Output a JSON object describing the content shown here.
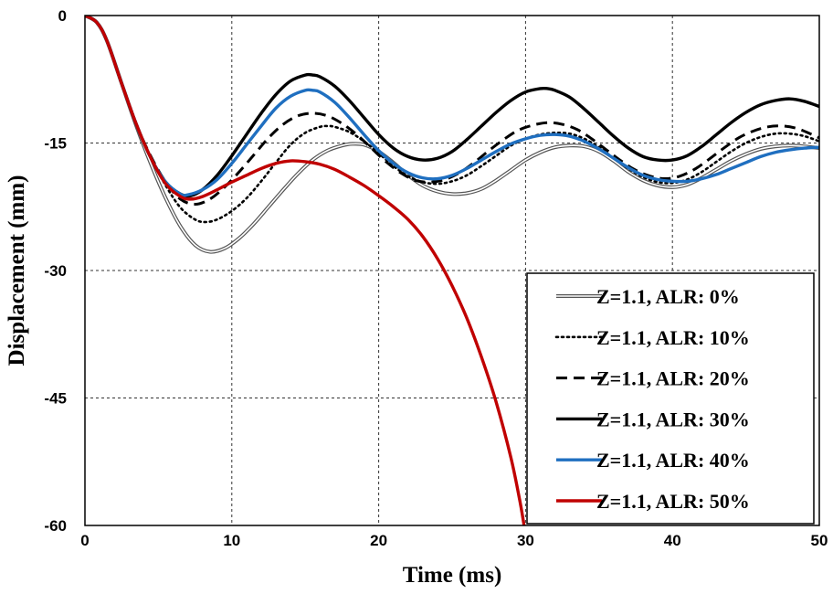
{
  "chart_data": {
    "type": "line",
    "title": "",
    "xlabel": "Time (ms)",
    "ylabel": "Displacement (mm)",
    "xlim": [
      0,
      50
    ],
    "ylim": [
      -60,
      0
    ],
    "grid": true,
    "legend_position": "bottom-right",
    "x_ticks": [
      0,
      10,
      20,
      30,
      40,
      50
    ],
    "x_tick_labels": [
      "0",
      "10",
      "20",
      "30",
      "40",
      "50"
    ],
    "y_ticks": [
      0,
      -15,
      -30,
      -45,
      -60
    ],
    "y_tick_labels": [
      "0",
      "-15",
      "-30",
      "-45",
      "-60"
    ],
    "series": [
      {
        "name": "Z=1.1, ALR: 0%",
        "color": "#555555",
        "style": "double",
        "points": [
          [
            0,
            0
          ],
          [
            0.8,
            -0.8
          ],
          [
            1.5,
            -3
          ],
          [
            2.5,
            -8
          ],
          [
            3.5,
            -13
          ],
          [
            4.5,
            -17.5
          ],
          [
            5.5,
            -21.5
          ],
          [
            6.5,
            -24.8
          ],
          [
            7.5,
            -27
          ],
          [
            8.5,
            -27.8
          ],
          [
            9.5,
            -27.4
          ],
          [
            10.5,
            -26.2
          ],
          [
            11.5,
            -24.5
          ],
          [
            12.5,
            -22.5
          ],
          [
            13.5,
            -20.5
          ],
          [
            14.5,
            -18.6
          ],
          [
            15.5,
            -17
          ],
          [
            16.5,
            -15.9
          ],
          [
            17.5,
            -15.3
          ],
          [
            18.2,
            -15.1
          ],
          [
            19,
            -15.2
          ],
          [
            20,
            -16
          ],
          [
            21,
            -17.3
          ],
          [
            22,
            -18.8
          ],
          [
            23,
            -20
          ],
          [
            24,
            -20.7
          ],
          [
            25,
            -21
          ],
          [
            26,
            -20.9
          ],
          [
            27,
            -20.4
          ],
          [
            28,
            -19.4
          ],
          [
            29,
            -18.2
          ],
          [
            30,
            -17
          ],
          [
            31,
            -16.1
          ],
          [
            32,
            -15.5
          ],
          [
            33,
            -15.3
          ],
          [
            34,
            -15.4
          ],
          [
            35,
            -16
          ],
          [
            36,
            -17.1
          ],
          [
            37,
            -18.4
          ],
          [
            38,
            -19.4
          ],
          [
            39,
            -20
          ],
          [
            40,
            -20.2
          ],
          [
            41,
            -19.9
          ],
          [
            42,
            -19.1
          ],
          [
            43,
            -18.1
          ],
          [
            44,
            -17.1
          ],
          [
            45,
            -16.3
          ],
          [
            46,
            -15.7
          ],
          [
            47,
            -15.4
          ],
          [
            48,
            -15.3
          ],
          [
            49,
            -15.4
          ],
          [
            50,
            -15.6
          ]
        ]
      },
      {
        "name": "Z=1.1, ALR: 10%",
        "color": "#000000",
        "style": "dotted",
        "points": [
          [
            0,
            0
          ],
          [
            0.8,
            -0.8
          ],
          [
            1.5,
            -3
          ],
          [
            2.5,
            -8
          ],
          [
            3.5,
            -12.8
          ],
          [
            4.5,
            -16.8
          ],
          [
            5.5,
            -20
          ],
          [
            6.5,
            -22.6
          ],
          [
            7.5,
            -24
          ],
          [
            8.2,
            -24.3
          ],
          [
            9,
            -24
          ],
          [
            10,
            -23
          ],
          [
            11,
            -21.5
          ],
          [
            12,
            -19.5
          ],
          [
            13,
            -17.3
          ],
          [
            14,
            -15.2
          ],
          [
            15,
            -13.8
          ],
          [
            16,
            -13.1
          ],
          [
            16.5,
            -13
          ],
          [
            17,
            -13.1
          ],
          [
            18,
            -13.7
          ],
          [
            19,
            -14.8
          ],
          [
            20,
            -16.2
          ],
          [
            21,
            -17.7
          ],
          [
            22,
            -18.9
          ],
          [
            23,
            -19.6
          ],
          [
            24,
            -19.8
          ],
          [
            25,
            -19.5
          ],
          [
            26,
            -18.8
          ],
          [
            27,
            -17.7
          ],
          [
            28,
            -16.5
          ],
          [
            29,
            -15.3
          ],
          [
            30,
            -14.5
          ],
          [
            31,
            -14
          ],
          [
            32,
            -13.8
          ],
          [
            33,
            -13.9
          ],
          [
            34,
            -14.5
          ],
          [
            35,
            -15.5
          ],
          [
            36,
            -16.8
          ],
          [
            37,
            -18
          ],
          [
            38,
            -19
          ],
          [
            39,
            -19.6
          ],
          [
            40,
            -19.7
          ],
          [
            41,
            -19.3
          ],
          [
            42,
            -18.4
          ],
          [
            43,
            -17.2
          ],
          [
            44,
            -16
          ],
          [
            45,
            -15
          ],
          [
            46,
            -14.3
          ],
          [
            47,
            -13.9
          ],
          [
            48,
            -13.9
          ],
          [
            49,
            -14.2
          ],
          [
            50,
            -14.8
          ]
        ]
      },
      {
        "name": "Z=1.1, ALR: 20%",
        "color": "#000000",
        "style": "dashed",
        "points": [
          [
            0,
            0
          ],
          [
            0.8,
            -0.8
          ],
          [
            1.5,
            -3
          ],
          [
            2.5,
            -8
          ],
          [
            3.5,
            -12.8
          ],
          [
            4.5,
            -16.6
          ],
          [
            5.5,
            -19.6
          ],
          [
            6.5,
            -21.6
          ],
          [
            7.5,
            -22.2
          ],
          [
            8.5,
            -21.6
          ],
          [
            9.5,
            -20.2
          ],
          [
            10.5,
            -18.4
          ],
          [
            11.5,
            -16.4
          ],
          [
            12.5,
            -14.4
          ],
          [
            13.5,
            -12.8
          ],
          [
            14.5,
            -11.8
          ],
          [
            15.5,
            -11.5
          ],
          [
            16.5,
            -11.8
          ],
          [
            17.5,
            -12.7
          ],
          [
            18.5,
            -14
          ],
          [
            19.5,
            -15.6
          ],
          [
            20.5,
            -17.2
          ],
          [
            21.5,
            -18.5
          ],
          [
            22.5,
            -19.4
          ],
          [
            23.5,
            -19.6
          ],
          [
            24.5,
            -19.3
          ],
          [
            25.5,
            -18.5
          ],
          [
            26.5,
            -17.3
          ],
          [
            27.5,
            -15.9
          ],
          [
            28.5,
            -14.6
          ],
          [
            29.5,
            -13.5
          ],
          [
            30.5,
            -12.9
          ],
          [
            31.5,
            -12.6
          ],
          [
            32.5,
            -12.8
          ],
          [
            33.5,
            -13.4
          ],
          [
            34.5,
            -14.5
          ],
          [
            35.5,
            -15.8
          ],
          [
            36.5,
            -17.1
          ],
          [
            37.5,
            -18.2
          ],
          [
            38.5,
            -18.9
          ],
          [
            39.5,
            -19.2
          ],
          [
            40.5,
            -18.9
          ],
          [
            41.5,
            -18.1
          ],
          [
            42.5,
            -16.9
          ],
          [
            43.5,
            -15.6
          ],
          [
            44.5,
            -14.4
          ],
          [
            45.5,
            -13.6
          ],
          [
            46.5,
            -13.1
          ],
          [
            47.5,
            -13
          ],
          [
            48.5,
            -13.3
          ],
          [
            49.5,
            -14
          ],
          [
            50,
            -14.4
          ]
        ]
      },
      {
        "name": "Z=1.1, ALR: 30%",
        "color": "#000000",
        "style": "solid-thick",
        "points": [
          [
            0,
            0
          ],
          [
            0.8,
            -0.8
          ],
          [
            1.5,
            -3
          ],
          [
            2.5,
            -8
          ],
          [
            3.5,
            -12.8
          ],
          [
            4.5,
            -16.8
          ],
          [
            5.5,
            -19.6
          ],
          [
            6.5,
            -21
          ],
          [
            7.2,
            -21.2
          ],
          [
            8,
            -20.5
          ],
          [
            9,
            -18.8
          ],
          [
            10,
            -16.5
          ],
          [
            11,
            -14
          ],
          [
            12,
            -11.5
          ],
          [
            13,
            -9.3
          ],
          [
            14,
            -7.7
          ],
          [
            15,
            -7
          ],
          [
            15.5,
            -7
          ],
          [
            16,
            -7.2
          ],
          [
            17,
            -8.3
          ],
          [
            18,
            -10
          ],
          [
            19,
            -12
          ],
          [
            20,
            -14
          ],
          [
            21,
            -15.6
          ],
          [
            22,
            -16.6
          ],
          [
            23,
            -17
          ],
          [
            24,
            -16.8
          ],
          [
            25,
            -16
          ],
          [
            26,
            -14.6
          ],
          [
            27,
            -13
          ],
          [
            28,
            -11.4
          ],
          [
            29,
            -10
          ],
          [
            30,
            -9
          ],
          [
            31,
            -8.6
          ],
          [
            31.5,
            -8.6
          ],
          [
            32,
            -8.8
          ],
          [
            33,
            -9.6
          ],
          [
            34,
            -11
          ],
          [
            35,
            -12.6
          ],
          [
            36,
            -14.2
          ],
          [
            37,
            -15.6
          ],
          [
            38,
            -16.6
          ],
          [
            39,
            -17
          ],
          [
            40,
            -17
          ],
          [
            41,
            -16.5
          ],
          [
            42,
            -15.4
          ],
          [
            43,
            -14
          ],
          [
            44,
            -12.6
          ],
          [
            45,
            -11.4
          ],
          [
            46,
            -10.5
          ],
          [
            47,
            -10
          ],
          [
            48,
            -9.8
          ],
          [
            49,
            -10.1
          ],
          [
            50,
            -10.7
          ]
        ]
      },
      {
        "name": "Z=1.1, ALR: 40%",
        "color": "#1F6FC0",
        "style": "solid-thick",
        "points": [
          [
            0,
            0
          ],
          [
            0.8,
            -0.8
          ],
          [
            1.5,
            -3
          ],
          [
            2.5,
            -8
          ],
          [
            3.5,
            -12.8
          ],
          [
            4.5,
            -16.8
          ],
          [
            5.5,
            -19.6
          ],
          [
            6.5,
            -21
          ],
          [
            7,
            -21.1
          ],
          [
            8,
            -20.5
          ],
          [
            9,
            -19.3
          ],
          [
            10,
            -17.4
          ],
          [
            11,
            -15.2
          ],
          [
            12,
            -13
          ],
          [
            13,
            -10.9
          ],
          [
            14,
            -9.5
          ],
          [
            15,
            -8.8
          ],
          [
            15.5,
            -8.8
          ],
          [
            16,
            -9
          ],
          [
            17,
            -10.2
          ],
          [
            18,
            -12
          ],
          [
            19,
            -14
          ],
          [
            20,
            -15.9
          ],
          [
            21,
            -17.4
          ],
          [
            22,
            -18.5
          ],
          [
            23,
            -19.1
          ],
          [
            24,
            -19.2
          ],
          [
            25,
            -18.8
          ],
          [
            26,
            -18
          ],
          [
            27,
            -17
          ],
          [
            28,
            -16
          ],
          [
            29,
            -15.1
          ],
          [
            30,
            -14.5
          ],
          [
            31,
            -14.1
          ],
          [
            32,
            -14
          ],
          [
            33,
            -14.2
          ],
          [
            34,
            -14.8
          ],
          [
            35,
            -15.7
          ],
          [
            36,
            -16.8
          ],
          [
            37,
            -17.9
          ],
          [
            38,
            -18.8
          ],
          [
            39,
            -19.3
          ],
          [
            40,
            -19.5
          ],
          [
            41,
            -19.5
          ],
          [
            42,
            -19.2
          ],
          [
            43,
            -18.7
          ],
          [
            44,
            -18
          ],
          [
            45,
            -17.3
          ],
          [
            46,
            -16.6
          ],
          [
            47,
            -16.1
          ],
          [
            48,
            -15.8
          ],
          [
            49,
            -15.6
          ],
          [
            50,
            -15.5
          ]
        ]
      },
      {
        "name": "Z=1.1, ALR: 50%",
        "color": "#C00000",
        "style": "solid-thick",
        "points": [
          [
            0,
            0
          ],
          [
            0.8,
            -0.8
          ],
          [
            1.5,
            -3
          ],
          [
            2.5,
            -8
          ],
          [
            3.5,
            -12.8
          ],
          [
            4.5,
            -16.8
          ],
          [
            5.5,
            -19.8
          ],
          [
            6.5,
            -21.3
          ],
          [
            7.2,
            -21.6
          ],
          [
            8,
            -21.3
          ],
          [
            9,
            -20.5
          ],
          [
            10,
            -19.6
          ],
          [
            11,
            -18.8
          ],
          [
            12,
            -18
          ],
          [
            13,
            -17.4
          ],
          [
            14,
            -17.1
          ],
          [
            15,
            -17.2
          ],
          [
            16,
            -17.5
          ],
          [
            17,
            -18.1
          ],
          [
            18,
            -19
          ],
          [
            19,
            -20
          ],
          [
            20,
            -21.2
          ],
          [
            21,
            -22.5
          ],
          [
            22,
            -24
          ],
          [
            23,
            -26
          ],
          [
            24,
            -28.6
          ],
          [
            25,
            -31.8
          ],
          [
            26,
            -35.6
          ],
          [
            27,
            -40.2
          ],
          [
            28,
            -45.5
          ],
          [
            29,
            -52
          ],
          [
            29.6,
            -57
          ],
          [
            29.9,
            -60
          ]
        ]
      }
    ]
  }
}
